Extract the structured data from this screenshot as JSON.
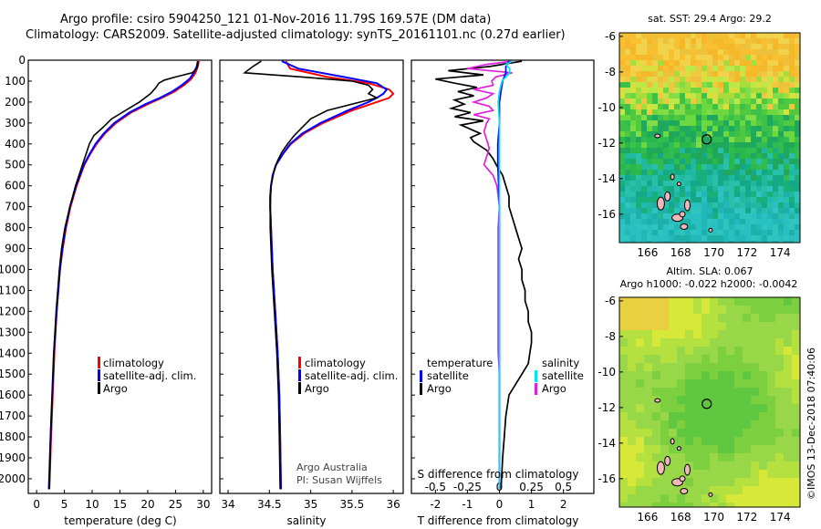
{
  "header": {
    "line1": "Argo profile: csiro 5904250_121 01-Nov-2016 11.79S 169.57E (DM data)",
    "line2": "Climatology: CARS2009. Satellite-adjusted climatology: synTS_20161101.nc (0.27d earlier)"
  },
  "colors": {
    "climatology": "#ff0000",
    "satellite": "#0000ff",
    "argo": "#000000",
    "sal_satellite": "#00e5ee",
    "sal_argo": "#e020e0"
  },
  "depth_axis": {
    "ticks": [
      "0",
      "100",
      "200",
      "300",
      "400",
      "500",
      "600",
      "700",
      "800",
      "900",
      "1000",
      "1100",
      "1200",
      "1300",
      "1400",
      "1500",
      "1600",
      "1700",
      "1800",
      "1900",
      "2000"
    ],
    "range": [
      0,
      2070
    ]
  },
  "chart_data": [
    {
      "type": "line",
      "id": "temperature",
      "xlabel": "temperature (deg C)",
      "xlim": [
        -1.5,
        31.5
      ],
      "xticks": [
        "0",
        "5",
        "10",
        "15",
        "20",
        "25",
        "30"
      ],
      "legend": [
        "climatology",
        "satellite-adj. clim.",
        "Argo"
      ],
      "series": [
        {
          "name": "climatology",
          "depth": [
            5,
            30,
            60,
            90,
            120,
            150,
            180,
            210,
            250,
            300,
            350,
            400,
            450,
            500,
            600,
            700,
            800,
            900,
            1000,
            1200,
            1400,
            1600,
            1800,
            2050
          ],
          "values": [
            29.2,
            29.0,
            28.6,
            27.8,
            26.5,
            24.8,
            22.5,
            20.0,
            17.0,
            14.3,
            12.3,
            10.8,
            9.6,
            8.6,
            7.2,
            6.1,
            5.3,
            4.7,
            4.2,
            3.6,
            3.2,
            2.9,
            2.6,
            2.3
          ]
        },
        {
          "name": "satellite-adj. clim.",
          "depth": [
            5,
            30,
            60,
            90,
            120,
            150,
            180,
            210,
            250,
            300,
            350,
            400,
            450,
            500,
            600,
            700,
            800,
            900,
            1000,
            1200,
            1400,
            1600,
            1800,
            2050
          ],
          "values": [
            29.0,
            28.8,
            28.3,
            27.5,
            26.1,
            24.4,
            22.2,
            19.6,
            16.7,
            14.0,
            12.1,
            10.6,
            9.5,
            8.5,
            7.1,
            6.0,
            5.2,
            4.6,
            4.2,
            3.6,
            3.1,
            2.8,
            2.5,
            2.2
          ]
        },
        {
          "name": "Argo",
          "depth": [
            5,
            20,
            40,
            60,
            80,
            95,
            110,
            130,
            160,
            200,
            240,
            280,
            320,
            360,
            400,
            440,
            480,
            520,
            600,
            700,
            800,
            900,
            1000,
            1200,
            1400,
            1600,
            1800,
            2050
          ],
          "values": [
            29.0,
            29.0,
            28.8,
            28.0,
            25.0,
            23.0,
            22.0,
            21.5,
            20.5,
            18.5,
            16.0,
            13.5,
            12.0,
            10.3,
            9.5,
            9.0,
            8.5,
            8.0,
            7.0,
            6.0,
            5.1,
            4.5,
            4.1,
            3.5,
            3.1,
            2.8,
            2.5,
            2.3
          ]
        }
      ]
    },
    {
      "type": "line",
      "id": "salinity",
      "xlabel": "salinity",
      "xlim": [
        33.9,
        36.12
      ],
      "xticks": [
        "34",
        "34.5",
        "35",
        "35.5",
        "36"
      ],
      "legend": [
        "climatology",
        "satellite-adj. clim.",
        "Argo"
      ],
      "annotation_line1": "Argo Australia",
      "annotation_line2": "PI: Susan Wijffels",
      "series": [
        {
          "name": "climatology",
          "depth": [
            5,
            40,
            80,
            110,
            140,
            160,
            180,
            200,
            240,
            300,
            350,
            400,
            450,
            500,
            550,
            600,
            650,
            700,
            800,
            900,
            1000,
            1200,
            1400,
            1600,
            1800,
            2050
          ],
          "values": [
            34.7,
            34.75,
            35.2,
            35.7,
            35.95,
            36.0,
            35.95,
            35.8,
            35.5,
            35.15,
            34.92,
            34.76,
            34.66,
            34.58,
            34.54,
            34.52,
            34.51,
            34.51,
            34.52,
            34.53,
            34.54,
            34.57,
            34.6,
            34.62,
            34.63,
            34.64
          ]
        },
        {
          "name": "satellite-adj. clim.",
          "depth": [
            5,
            40,
            80,
            110,
            140,
            160,
            180,
            200,
            240,
            300,
            350,
            400,
            450,
            500,
            550,
            600,
            650,
            700,
            800,
            900,
            1000,
            1200,
            1400,
            1600,
            1800,
            2050
          ],
          "values": [
            34.65,
            34.85,
            35.4,
            35.8,
            35.92,
            35.88,
            35.8,
            35.7,
            35.45,
            35.12,
            34.9,
            34.75,
            34.66,
            34.58,
            34.54,
            34.52,
            34.51,
            34.51,
            34.52,
            34.53,
            34.54,
            34.57,
            34.6,
            34.62,
            34.63,
            34.64
          ]
        },
        {
          "name": "Argo",
          "depth": [
            5,
            30,
            60,
            80,
            100,
            120,
            140,
            160,
            180,
            200,
            240,
            280,
            320,
            360,
            400,
            440,
            480,
            520,
            600,
            700,
            800,
            900,
            1000,
            1200,
            1400,
            1600,
            1800,
            2050
          ],
          "values": [
            34.4,
            34.3,
            34.2,
            34.9,
            35.5,
            35.7,
            35.75,
            35.7,
            35.8,
            35.6,
            35.2,
            35.0,
            34.9,
            34.8,
            34.72,
            34.65,
            34.6,
            34.56,
            34.52,
            34.51,
            34.51,
            34.52,
            34.53,
            34.56,
            34.59,
            34.61,
            34.62,
            34.63
          ]
        }
      ]
    },
    {
      "type": "line",
      "id": "difference",
      "xlabel": "T difference from climatology",
      "xlim": [
        -2.75,
        2.95
      ],
      "xticks": [
        "-2",
        "-1",
        "0",
        "1",
        "2"
      ],
      "top_label": "S difference from climatology",
      "top_ticks": [
        "-0.5",
        "-0.25",
        "0",
        "0.25",
        "0.5"
      ],
      "legend_left_title": "temperature",
      "legend_right_title": "salinity",
      "legend_left": [
        "satellite",
        "Argo"
      ],
      "legend_right": [
        "satellite",
        "Argo"
      ],
      "series": [
        {
          "name": "T satellite",
          "unit": "degC",
          "depth": [
            5,
            30,
            60,
            100,
            150,
            200,
            300,
            400,
            500,
            700,
            900,
            1100,
            1400,
            1700,
            2050
          ],
          "values": [
            0.3,
            0.2,
            0.2,
            0.1,
            0.05,
            0.0,
            0.0,
            -0.05,
            -0.05,
            0.0,
            0.0,
            0.0,
            0.0,
            0.0,
            0.0
          ]
        },
        {
          "name": "T Argo",
          "unit": "degC",
          "depth": [
            5,
            15,
            30,
            50,
            70,
            90,
            110,
            130,
            150,
            170,
            190,
            210,
            230,
            250,
            270,
            290,
            310,
            330,
            350,
            370,
            390,
            410,
            430,
            450,
            470,
            500,
            550,
            600,
            650,
            700,
            750,
            800,
            850,
            900,
            950,
            1000,
            1050,
            1100,
            1150,
            1200,
            1250,
            1300,
            1350,
            1400,
            1450,
            1500,
            1550,
            1600,
            1700,
            1800,
            1900,
            2050
          ],
          "values": [
            0.7,
            0.3,
            -0.3,
            -1.6,
            -0.5,
            -2.0,
            -1.4,
            -0.7,
            -1.3,
            -0.8,
            -1.4,
            -1.1,
            -1.5,
            -0.9,
            -1.4,
            -0.5,
            -1.2,
            -0.9,
            -0.6,
            -0.9,
            -0.8,
            -0.6,
            -0.4,
            -0.3,
            -0.2,
            -0.1,
            0.1,
            0.2,
            0.3,
            0.3,
            0.4,
            0.5,
            0.6,
            0.7,
            0.6,
            0.7,
            0.7,
            0.8,
            0.8,
            0.9,
            0.9,
            1.0,
            1.0,
            0.95,
            0.9,
            0.7,
            0.5,
            0.3,
            0.2,
            0.15,
            0.1,
            0.05
          ]
        },
        {
          "name": "S satellite",
          "unit": "psu",
          "depth": [
            5,
            20,
            40,
            60,
            100,
            150,
            200,
            300,
            400,
            500,
            700,
            1000,
            1400,
            1800,
            2050
          ],
          "values": [
            0.1,
            0.05,
            0.08,
            0.08,
            0.02,
            0.0,
            -0.01,
            0.0,
            0.0,
            0.0,
            0.0,
            0.0,
            0.0,
            0.0,
            0.0
          ]
        },
        {
          "name": "S Argo",
          "unit": "psu",
          "depth": [
            5,
            20,
            40,
            60,
            80,
            100,
            120,
            140,
            160,
            180,
            200,
            220,
            240,
            260,
            280,
            300,
            340,
            380,
            420,
            460,
            500,
            550,
            600,
            700,
            800,
            1000,
            1200,
            1400,
            1500,
            1600,
            1800,
            2050
          ],
          "values": [
            0.1,
            -0.1,
            -0.25,
            0.1,
            -0.03,
            -0.06,
            -0.05,
            -0.2,
            -0.05,
            -0.1,
            -0.2,
            -0.08,
            -0.05,
            -0.2,
            -0.08,
            -0.1,
            -0.12,
            -0.1,
            -0.08,
            -0.1,
            -0.12,
            -0.05,
            -0.02,
            0.0,
            -0.01,
            -0.01,
            -0.01,
            -0.01,
            0.0,
            0.0,
            0.0,
            0.0
          ]
        }
      ]
    },
    {
      "type": "heatmap",
      "id": "sst_map",
      "title": "sat. SST: 29.4 Argo: 29.2",
      "xticks": [
        "166",
        "168",
        "170",
        "172",
        "174"
      ],
      "yticks": [
        "-6",
        "-8",
        "-10",
        "-12",
        "-14",
        "-16"
      ],
      "xlim": [
        164.3,
        175.2
      ],
      "ylim": [
        -17.6,
        -5.8
      ],
      "float_position": {
        "lon": 169.57,
        "lat": -11.79
      }
    },
    {
      "type": "heatmap",
      "id": "sla_map",
      "title": "Altim. SLA: 0.067",
      "subtitle": "Argo h1000: -0.022 h2000: -0.0042",
      "xticks": [
        "166",
        "168",
        "170",
        "172",
        "174"
      ],
      "yticks": [
        "-6",
        "-8",
        "-10",
        "-12",
        "-14",
        "-16"
      ],
      "xlim": [
        164.3,
        175.2
      ],
      "ylim": [
        -17.6,
        -5.8
      ],
      "float_position": {
        "lon": 169.57,
        "lat": -11.79
      }
    }
  ],
  "credit": "©IMOS 13-Dec-2018 07:40:06"
}
